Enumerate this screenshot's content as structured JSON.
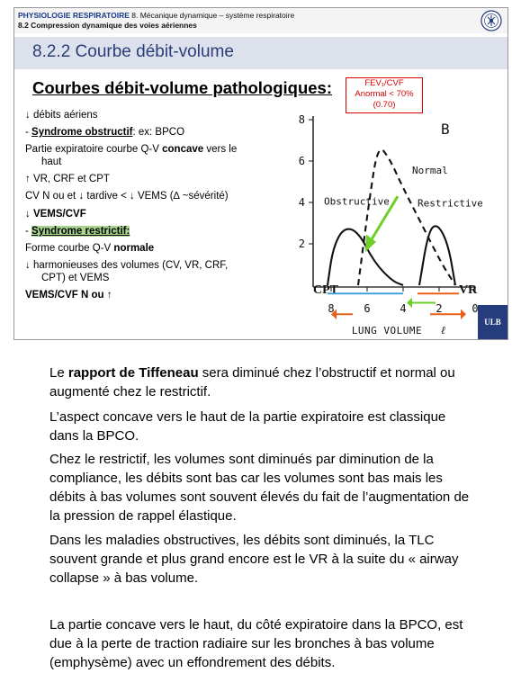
{
  "header": {
    "course": "PHYSIOLOGIE RESPIRATOIRE",
    "chapter": " 8. Mécanique dynamique – système respiratoire",
    "section": "8.2  Compression dynamique des voies aériennes",
    "logo_label": "ULB"
  },
  "slide": {
    "title": "8.2.2 Courbe débit-volume",
    "subtitle": "Courbes débit-volume pathologiques",
    "subtitle_colon": ":",
    "fev_box": {
      "line1": "FEV₁/CVF",
      "line2": "Anormal < 70%",
      "line3": "(0.70)"
    },
    "bullets": [
      "↓ débits aériens",
      "-   ",
      "Syndrome obstructif",
      ": ex: BPCO",
      "Partie expiratoire courbe Q-V ",
      "concave",
      " vers le",
      "haut",
      "↑ VR, CRF et CPT",
      "CV  N ou et ↓ tardive < ↓ VEMS (∆ ~sévérité)",
      "↓ VEMS/CVF",
      "-   ",
      "Syndrome restrictif:",
      "Forme courbe Q-V ",
      "normale",
      "↓ harmonieuses des volumes (CV, VR, CRF,",
      "CPT) et VEMS",
      "VEMS/CVF N ou ↑"
    ],
    "ulb_badge": "ULB"
  },
  "chart_data": {
    "type": "line",
    "panel_label": "B",
    "xlabel": "LUNG VOLUME",
    "xlabel_unit": "ℓ",
    "x_ticks": [
      "8",
      "6",
      "4",
      "2",
      "0"
    ],
    "y_ticks": [
      "8",
      "6",
      "4",
      "2"
    ],
    "xlim": [
      9,
      0
    ],
    "ylim": [
      0,
      8
    ],
    "labels": {
      "normal": "Normal",
      "obstructive": "Obstructive",
      "restrictive": "Restrictive",
      "cpt": "CPT",
      "vr": "VR"
    },
    "series": [
      {
        "name": "Normal",
        "style": "dashed",
        "x": [
          6.5,
          5.9,
          5.4,
          4.8,
          4.0,
          3.0,
          1.9,
          1.1
        ],
        "y": [
          0,
          4.0,
          6.8,
          6.2,
          4.7,
          3.0,
          1.1,
          0
        ]
      },
      {
        "name": "Obstructive",
        "style": "solid",
        "x": [
          8.2,
          7.9,
          7.3,
          6.5,
          5.6,
          4.6,
          4.0
        ],
        "y": [
          0,
          1.8,
          2.8,
          2.6,
          1.1,
          0.2,
          0
        ]
      },
      {
        "name": "Restrictive",
        "style": "solid",
        "x": [
          3.1,
          2.6,
          2.1,
          1.5,
          1.1
        ],
        "y": [
          0,
          2.6,
          3.0,
          2.0,
          0
        ]
      }
    ]
  },
  "paragraphs": {
    "p1_pre": "Le ",
    "p1_bold": "rapport de Tiffeneau",
    "p1_post": " sera diminué chez l’obstructif et normal ou augmenté chez le restrictif.",
    "p2": "L’aspect concave vers le haut de la partie expiratoire est classique dans la BPCO.",
    "p3": "Chez le restrictif, les volumes sont diminués par diminution de la compliance, les débits sont bas car les volumes sont bas mais les débits à bas volumes sont souvent élevés du fait de l’augmentation de la pression de rappel élastique.",
    "p4": "Dans les maladies obstructives, les débits sont diminués, la TLC souvent grande et plus grand encore est le VR à la suite du « airway collapse » à bas volume.",
    "p5": "La partie concave vers le haut, du côté expiratoire dans la BPCO, est due à la perte de traction radiaire sur les bronches à bas volume (emphysème) avec un effondrement des débits."
  }
}
